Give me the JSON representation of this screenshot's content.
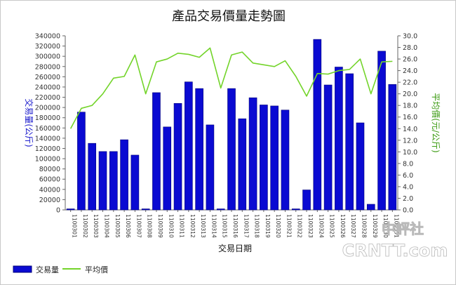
{
  "chart_data": {
    "type": "bar",
    "title": "產品交易價量走勢圖",
    "xlabel": "交易日期",
    "ylabel": "交易量(公斤)",
    "y2label": "平均價(元/公斤)",
    "categories": [
      "1100301",
      "1100302",
      "1100303",
      "1100304",
      "1100305",
      "1100306",
      "1100307",
      "1100308",
      "1100309",
      "1100310",
      "1100311",
      "1100312",
      "1100313",
      "1100314",
      "1100315",
      "1100316",
      "1100317",
      "1100318",
      "1100319",
      "1100320",
      "1100321",
      "1100322",
      "1100323",
      "1100324",
      "1100325",
      "1100326",
      "1100327",
      "1100328",
      "1100329",
      "1100330",
      "1100331"
    ],
    "ylim": [
      0,
      340000
    ],
    "y_ticks": [
      "0",
      "20000",
      "40000",
      "60000",
      "80000",
      "100000",
      "120000",
      "140000",
      "160000",
      "180000",
      "200000",
      "220000",
      "240000",
      "260000",
      "280000",
      "300000",
      "320000",
      "340000"
    ],
    "y2lim": [
      0,
      30
    ],
    "y2_ticks": [
      "0.0",
      "2.0",
      "4.0",
      "6.0",
      "8.0",
      "10.0",
      "12.0",
      "14.0",
      "16.0",
      "18.0",
      "20.0",
      "22.0",
      "24.0",
      "26.0",
      "28.0",
      "30.0"
    ],
    "series": [
      {
        "name": "交易量",
        "type": "bar",
        "axis": "left",
        "values": [
          2000,
          191000,
          130000,
          114000,
          114000,
          137000,
          107000,
          2000,
          229000,
          162000,
          208000,
          250000,
          237000,
          166000,
          2000,
          237000,
          178000,
          219000,
          205000,
          203000,
          195000,
          2000,
          39000,
          333000,
          244000,
          279000,
          266000,
          170000,
          11000,
          310000,
          245000
        ]
      },
      {
        "name": "平均價",
        "type": "line",
        "axis": "right",
        "values": [
          14.0,
          17.5,
          18.0,
          20.0,
          22.7,
          23.0,
          26.7,
          20.0,
          25.5,
          26.0,
          27.0,
          26.8,
          26.3,
          27.9,
          21.0,
          26.7,
          27.2,
          25.3,
          25.0,
          24.7,
          25.7,
          23.0,
          19.6,
          23.5,
          23.4,
          24.0,
          24.2,
          26.0,
          20.0,
          25.5,
          25.6
        ]
      }
    ],
    "grid": false,
    "legend": "bottom-left",
    "colors": {
      "bar": "#0a0ad2",
      "bar_edge": "#00007a",
      "line": "#73d42a",
      "left_axis_title": "#1a1acc",
      "right_axis_title": "#3a9a10"
    }
  },
  "watermark": {
    "line1": "中評社",
    "line2": "CRNTT.com"
  }
}
